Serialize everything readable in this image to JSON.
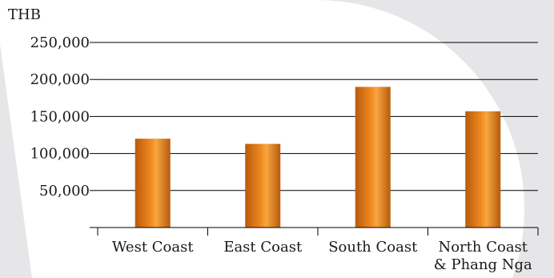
{
  "chart_data": {
    "type": "bar",
    "title": "",
    "unit_label": "THB",
    "xlabel": "",
    "ylabel": "",
    "categories": [
      [
        "West Coast"
      ],
      [
        "East Coast"
      ],
      [
        "South Coast"
      ],
      [
        "North Coast",
        "& Phang Nga"
      ]
    ],
    "values": [
      120000,
      113000,
      190000,
      157000
    ],
    "ylim": [
      0,
      250000
    ],
    "yticks": [
      {
        "value": 50000,
        "label": "50,000"
      },
      {
        "value": 100000,
        "label": "100,000"
      },
      {
        "value": 150000,
        "label": "150,000"
      },
      {
        "value": 200000,
        "label": "200,000"
      },
      {
        "value": 250000,
        "label": "250,000"
      }
    ],
    "grid": true,
    "legend": "none",
    "colors": {
      "bar_edge": "#b85a0c",
      "bar_mid": "#f08a20",
      "bar_highlight": "#f7a640",
      "grid": "#000000",
      "background_shape": "#e6e6e8"
    }
  }
}
